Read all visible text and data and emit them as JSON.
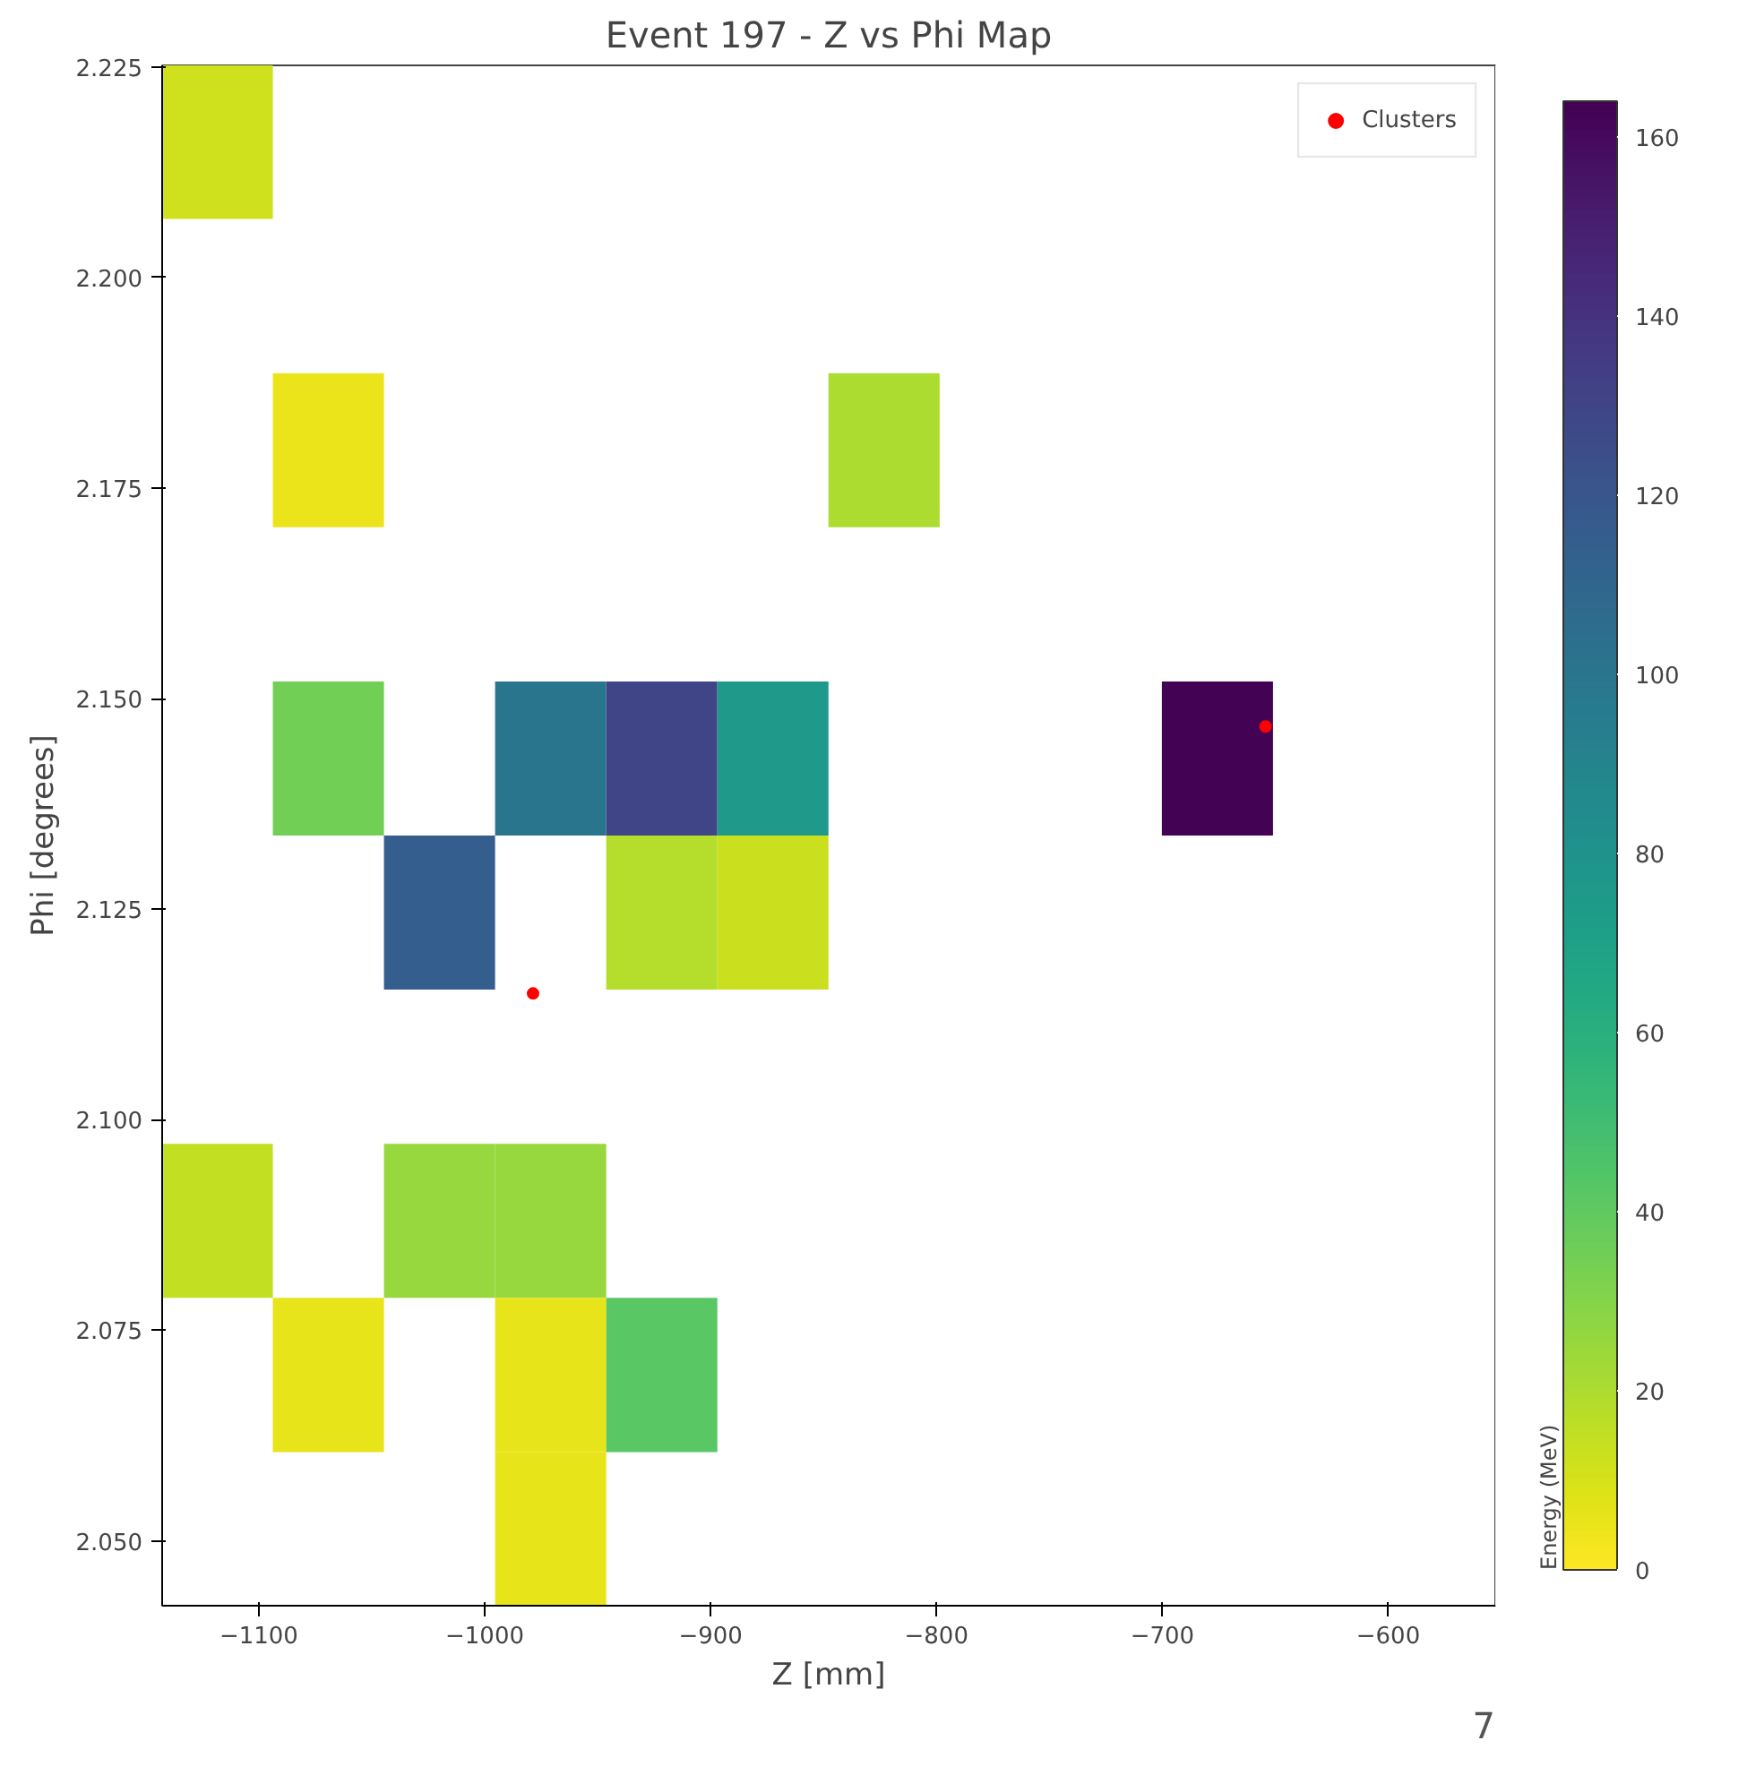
{
  "chart_data": {
    "type": "heatmap",
    "title": "Event 197 - Z vs Phi Map",
    "xlabel": "Z [mm]",
    "ylabel": "Phi [degrees]",
    "clabel": "Energy (MeV)",
    "x": [
      -1118.4,
      -1069.2,
      -1020.0,
      -970.8,
      -921.6,
      -872.4,
      -823.2,
      -774.0,
      -724.8,
      -675.6,
      -626.4,
      -577.2
    ],
    "y": [
      2.2161,
      2.1795,
      2.1429,
      2.1246,
      2.088,
      2.0697,
      2.0514
    ],
    "cells": [
      [
        12,
        null,
        null,
        null,
        null,
        null,
        null,
        null,
        null,
        null,
        null,
        null
      ],
      [
        null,
        5,
        null,
        null,
        null,
        null,
        20,
        null,
        null,
        null,
        null,
        null
      ],
      [
        null,
        35,
        null,
        100,
        130,
        75,
        null,
        null,
        null,
        163,
        null,
        null
      ],
      [
        null,
        null,
        115,
        null,
        18,
        13,
        null,
        null,
        null,
        null,
        null,
        null
      ],
      [
        15,
        null,
        25,
        25,
        null,
        null,
        null,
        null,
        null,
        null,
        null,
        null
      ],
      [
        null,
        6,
        null,
        6,
        42,
        null,
        null,
        null,
        null,
        null,
        null,
        null
      ],
      [
        null,
        null,
        null,
        6,
        null,
        null,
        null,
        null,
        null,
        null,
        null,
        null
      ]
    ],
    "clim": [
      0,
      164
    ],
    "cticks": [
      0,
      20,
      40,
      60,
      80,
      100,
      120,
      140,
      160
    ],
    "xlim": [
      -1142.8,
      -552.6
    ],
    "xticks": [
      -1100,
      -1000,
      -900,
      -800,
      -700,
      -600
    ],
    "ylim": [
      2.0423,
      2.2252
    ],
    "yticks": [
      {
        "value": 2.05,
        "label": "2.050"
      },
      {
        "value": 2.075,
        "label": "2.075"
      },
      {
        "value": 2.1,
        "label": "2.100"
      },
      {
        "value": 2.125,
        "label": "2.125"
      },
      {
        "value": 2.15,
        "label": "2.150"
      },
      {
        "value": 2.175,
        "label": "2.175"
      },
      {
        "value": 2.2,
        "label": "2.200"
      },
      {
        "value": 2.225,
        "label": "2.225"
      }
    ],
    "series": [
      {
        "type": "scatter",
        "name": "Clusters",
        "color": "#ff0000",
        "x": [
          -978.6,
          -654.3
        ],
        "values": [
          2.115,
          2.1467
        ]
      }
    ],
    "marker": "circle",
    "legend": "top right",
    "grid": false,
    "annotations": [
      "7"
    ]
  }
}
